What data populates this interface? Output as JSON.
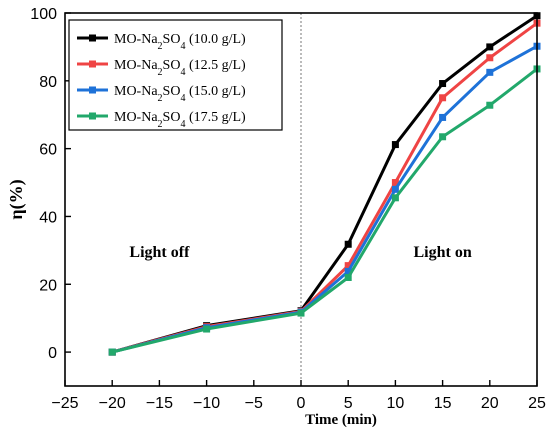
{
  "chart_data": {
    "type": "line",
    "xlabel": "Time (min)",
    "ylabel": "η(%)",
    "xlim": [
      -25,
      25
    ],
    "ylim": [
      -10,
      100
    ],
    "x_ticks": [
      -25,
      -20,
      -15,
      -10,
      -5,
      0,
      5,
      10,
      15,
      20,
      25
    ],
    "y_ticks": [
      0,
      20,
      40,
      60,
      80,
      100
    ],
    "grid": false,
    "legend_position": "top-left",
    "divider_x": 0,
    "annotations": [
      {
        "text": "Light off",
        "x": -15,
        "y": 28
      },
      {
        "text": "Light on",
        "x": 15,
        "y": 28
      }
    ],
    "x": [
      -20,
      -10,
      0,
      5,
      10,
      15,
      20,
      25
    ],
    "series": [
      {
        "name": "MO-Na2SO4  (10.0 g/L)",
        "legend_base": "MO-Na",
        "legend_sub1": "2",
        "legend_mid": "SO",
        "legend_sub2": "4",
        "legend_tail": "  (10.0 g/L)",
        "color": "#000000",
        "values": [
          0,
          7.8,
          12.2,
          31.8,
          61.2,
          79.2,
          90.0,
          99.2
        ]
      },
      {
        "name": "MO-Na2SO4  (12.5 g/L)",
        "legend_base": "MO-Na",
        "legend_sub1": "2",
        "legend_mid": "SO",
        "legend_sub2": "4",
        "legend_tail": "  (12.5 g/L)",
        "color": "#ef4444",
        "values": [
          0,
          7.5,
          12.0,
          25.5,
          50.0,
          75.0,
          86.8,
          97.0
        ]
      },
      {
        "name": "MO-Na2SO4  (15.0 g/L)",
        "legend_base": "MO-Na",
        "legend_sub1": "2",
        "legend_mid": "SO",
        "legend_sub2": "4",
        "legend_tail": "  (15.0 g/L)",
        "color": "#1e72d8",
        "values": [
          0,
          7.2,
          11.8,
          23.8,
          48.0,
          69.2,
          82.5,
          90.2
        ]
      },
      {
        "name": "MO-Na2SO4  (17.5 g/L)",
        "legend_base": "MO-Na",
        "legend_sub1": "2",
        "legend_mid": "SO",
        "legend_sub2": "4",
        "legend_tail": "  (17.5 g/L)",
        "color": "#22a86b",
        "values": [
          0,
          6.8,
          11.5,
          22.0,
          45.5,
          63.5,
          72.8,
          83.5
        ]
      }
    ]
  }
}
